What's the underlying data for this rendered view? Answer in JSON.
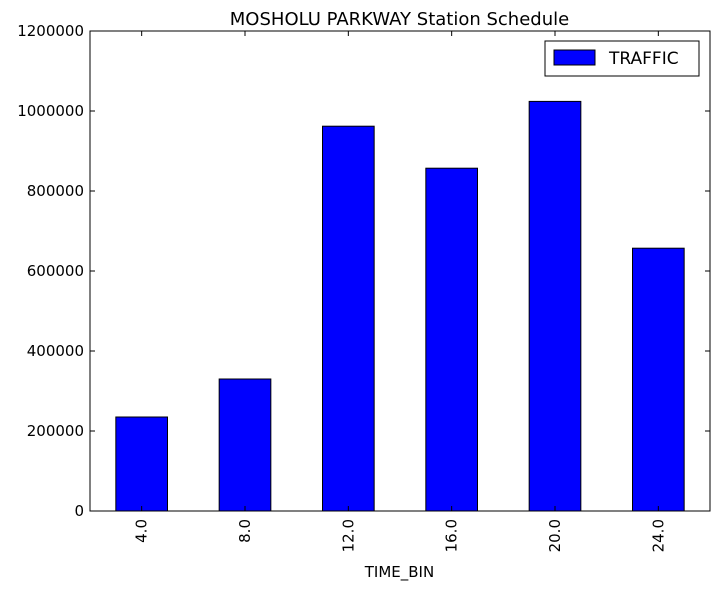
{
  "chart_data": {
    "type": "bar",
    "title": "MOSHOLU PARKWAY Station Schedule",
    "xlabel": "TIME_BIN",
    "ylabel": "",
    "categories": [
      "4.0",
      "8.0",
      "12.0",
      "16.0",
      "20.0",
      "24.0"
    ],
    "series": [
      {
        "name": "TRAFFIC",
        "color": "#0000ff",
        "values": [
          235000,
          330000,
          962000,
          857000,
          1024000,
          657000
        ]
      }
    ],
    "ylim": [
      0,
      1200000
    ],
    "y_ticks": [
      "0",
      "200000",
      "400000",
      "600000",
      "800000",
      "1000000",
      "1200000"
    ],
    "grid": false,
    "legend_position": "top-right"
  }
}
